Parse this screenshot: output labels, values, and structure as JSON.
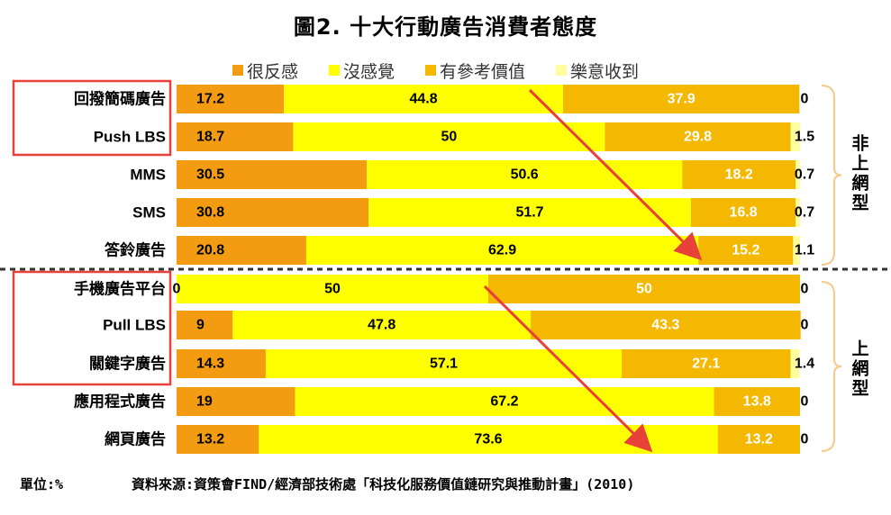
{
  "title": "圖2. 十大行動廣告消費者態度",
  "footer": {
    "unit": "單位:%",
    "source": "資料來源:資策會FIND/經濟部技術處「科技化服務價值鏈研究與推動計畫」(2010)"
  },
  "colors": {
    "dislike": "#F39C12",
    "no_feeling": "#FFFF00",
    "reference": "#F5B800",
    "happy": "#FFFFA0",
    "arrow": "#E8413A",
    "box": "#E8413A"
  },
  "chart_data": {
    "type": "bar",
    "orientation": "horizontal",
    "stacked": true,
    "title": "圖2. 十大行動廣告消費者態度",
    "legend_position": "top",
    "categories": [
      "回撥簡碼廣告",
      "Push LBS",
      "MMS",
      "SMS",
      "答鈴廣告",
      "手機廣告平台",
      "Pull LBS",
      "關鍵字廣告",
      "應用程式廣告",
      "網頁廣告"
    ],
    "series": [
      {
        "name": "很反感",
        "values": [
          17.2,
          18.7,
          30.5,
          30.8,
          20.8,
          0,
          9,
          14.3,
          19,
          13.2
        ]
      },
      {
        "name": "沒感覺",
        "values": [
          44.8,
          50,
          50.6,
          51.7,
          62.9,
          50,
          47.8,
          57.1,
          67.2,
          73.6
        ]
      },
      {
        "name": "有參考價值",
        "values": [
          37.9,
          29.8,
          18.2,
          16.8,
          15.2,
          50,
          43.3,
          27.1,
          13.8,
          13.2
        ]
      },
      {
        "name": "樂意收到",
        "values": [
          0,
          1.5,
          0.7,
          0.7,
          1.1,
          0,
          0,
          1.4,
          0,
          0
        ]
      }
    ],
    "groups": [
      {
        "label": "非上網型",
        "categories": [
          "回撥簡碼廣告",
          "Push LBS",
          "MMS",
          "SMS",
          "答鈴廣告"
        ]
      },
      {
        "label": "上網型",
        "categories": [
          "手機廣告平台",
          "Pull LBS",
          "關鍵字廣告",
          "應用程式廣告",
          "網頁廣告"
        ]
      }
    ],
    "xlim": [
      0,
      100
    ]
  }
}
